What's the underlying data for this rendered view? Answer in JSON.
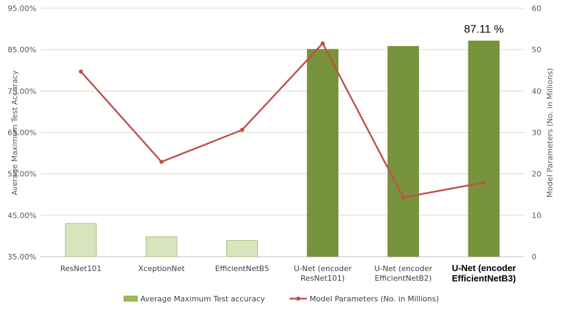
{
  "chart_data": {
    "type": "bar+line",
    "categories": [
      [
        "ResNet101"
      ],
      [
        "XceptionNet"
      ],
      [
        "EfficientNetB5"
      ],
      [
        "U-Net (encoder",
        "ResNet101)"
      ],
      [
        "U-Net (encoder",
        "EfficientNetB2)"
      ],
      [
        "U-Net (encoder",
        "EfficientNetB3)"
      ]
    ],
    "highlight_category_index": 5,
    "series": [
      {
        "name": "Average Maximum Test accuracy",
        "type": "bar",
        "axis": "left",
        "values": [
          43.0,
          39.8,
          38.9,
          85.1,
          85.8,
          87.11
        ],
        "colors": [
          "#d7e4bd",
          "#d7e4bd",
          "#d7e4bd",
          "#77933c",
          "#77933c",
          "#77933c"
        ],
        "border_colors": [
          "#9bbb59",
          "#9bbb59",
          "#9bbb59",
          "#77933c",
          "#77933c",
          "#77933c"
        ]
      },
      {
        "name": "Model Parameters (No. in Millions)",
        "type": "line",
        "axis": "right",
        "values": [
          44.7,
          22.9,
          30.6,
          51.5,
          14.3,
          17.9
        ],
        "color": "#c0504d"
      }
    ],
    "annotation": {
      "text": "87.11 %",
      "category_index": 5
    },
    "ylabel_left": "Average Maximum Test Accuracy",
    "ylabel_right": "Model Parameters (No. in Millions)",
    "ylim_left": [
      35,
      95
    ],
    "yticks_left": [
      "35.00%",
      "45.00%",
      "55.00%",
      "65.00%",
      "75.00%",
      "85.00%",
      "95.00%"
    ],
    "ylim_right": [
      0,
      60
    ],
    "yticks_right": [
      "0",
      "10",
      "20",
      "30",
      "40",
      "50",
      "60"
    ],
    "grid": true,
    "legend_position": "bottom"
  }
}
